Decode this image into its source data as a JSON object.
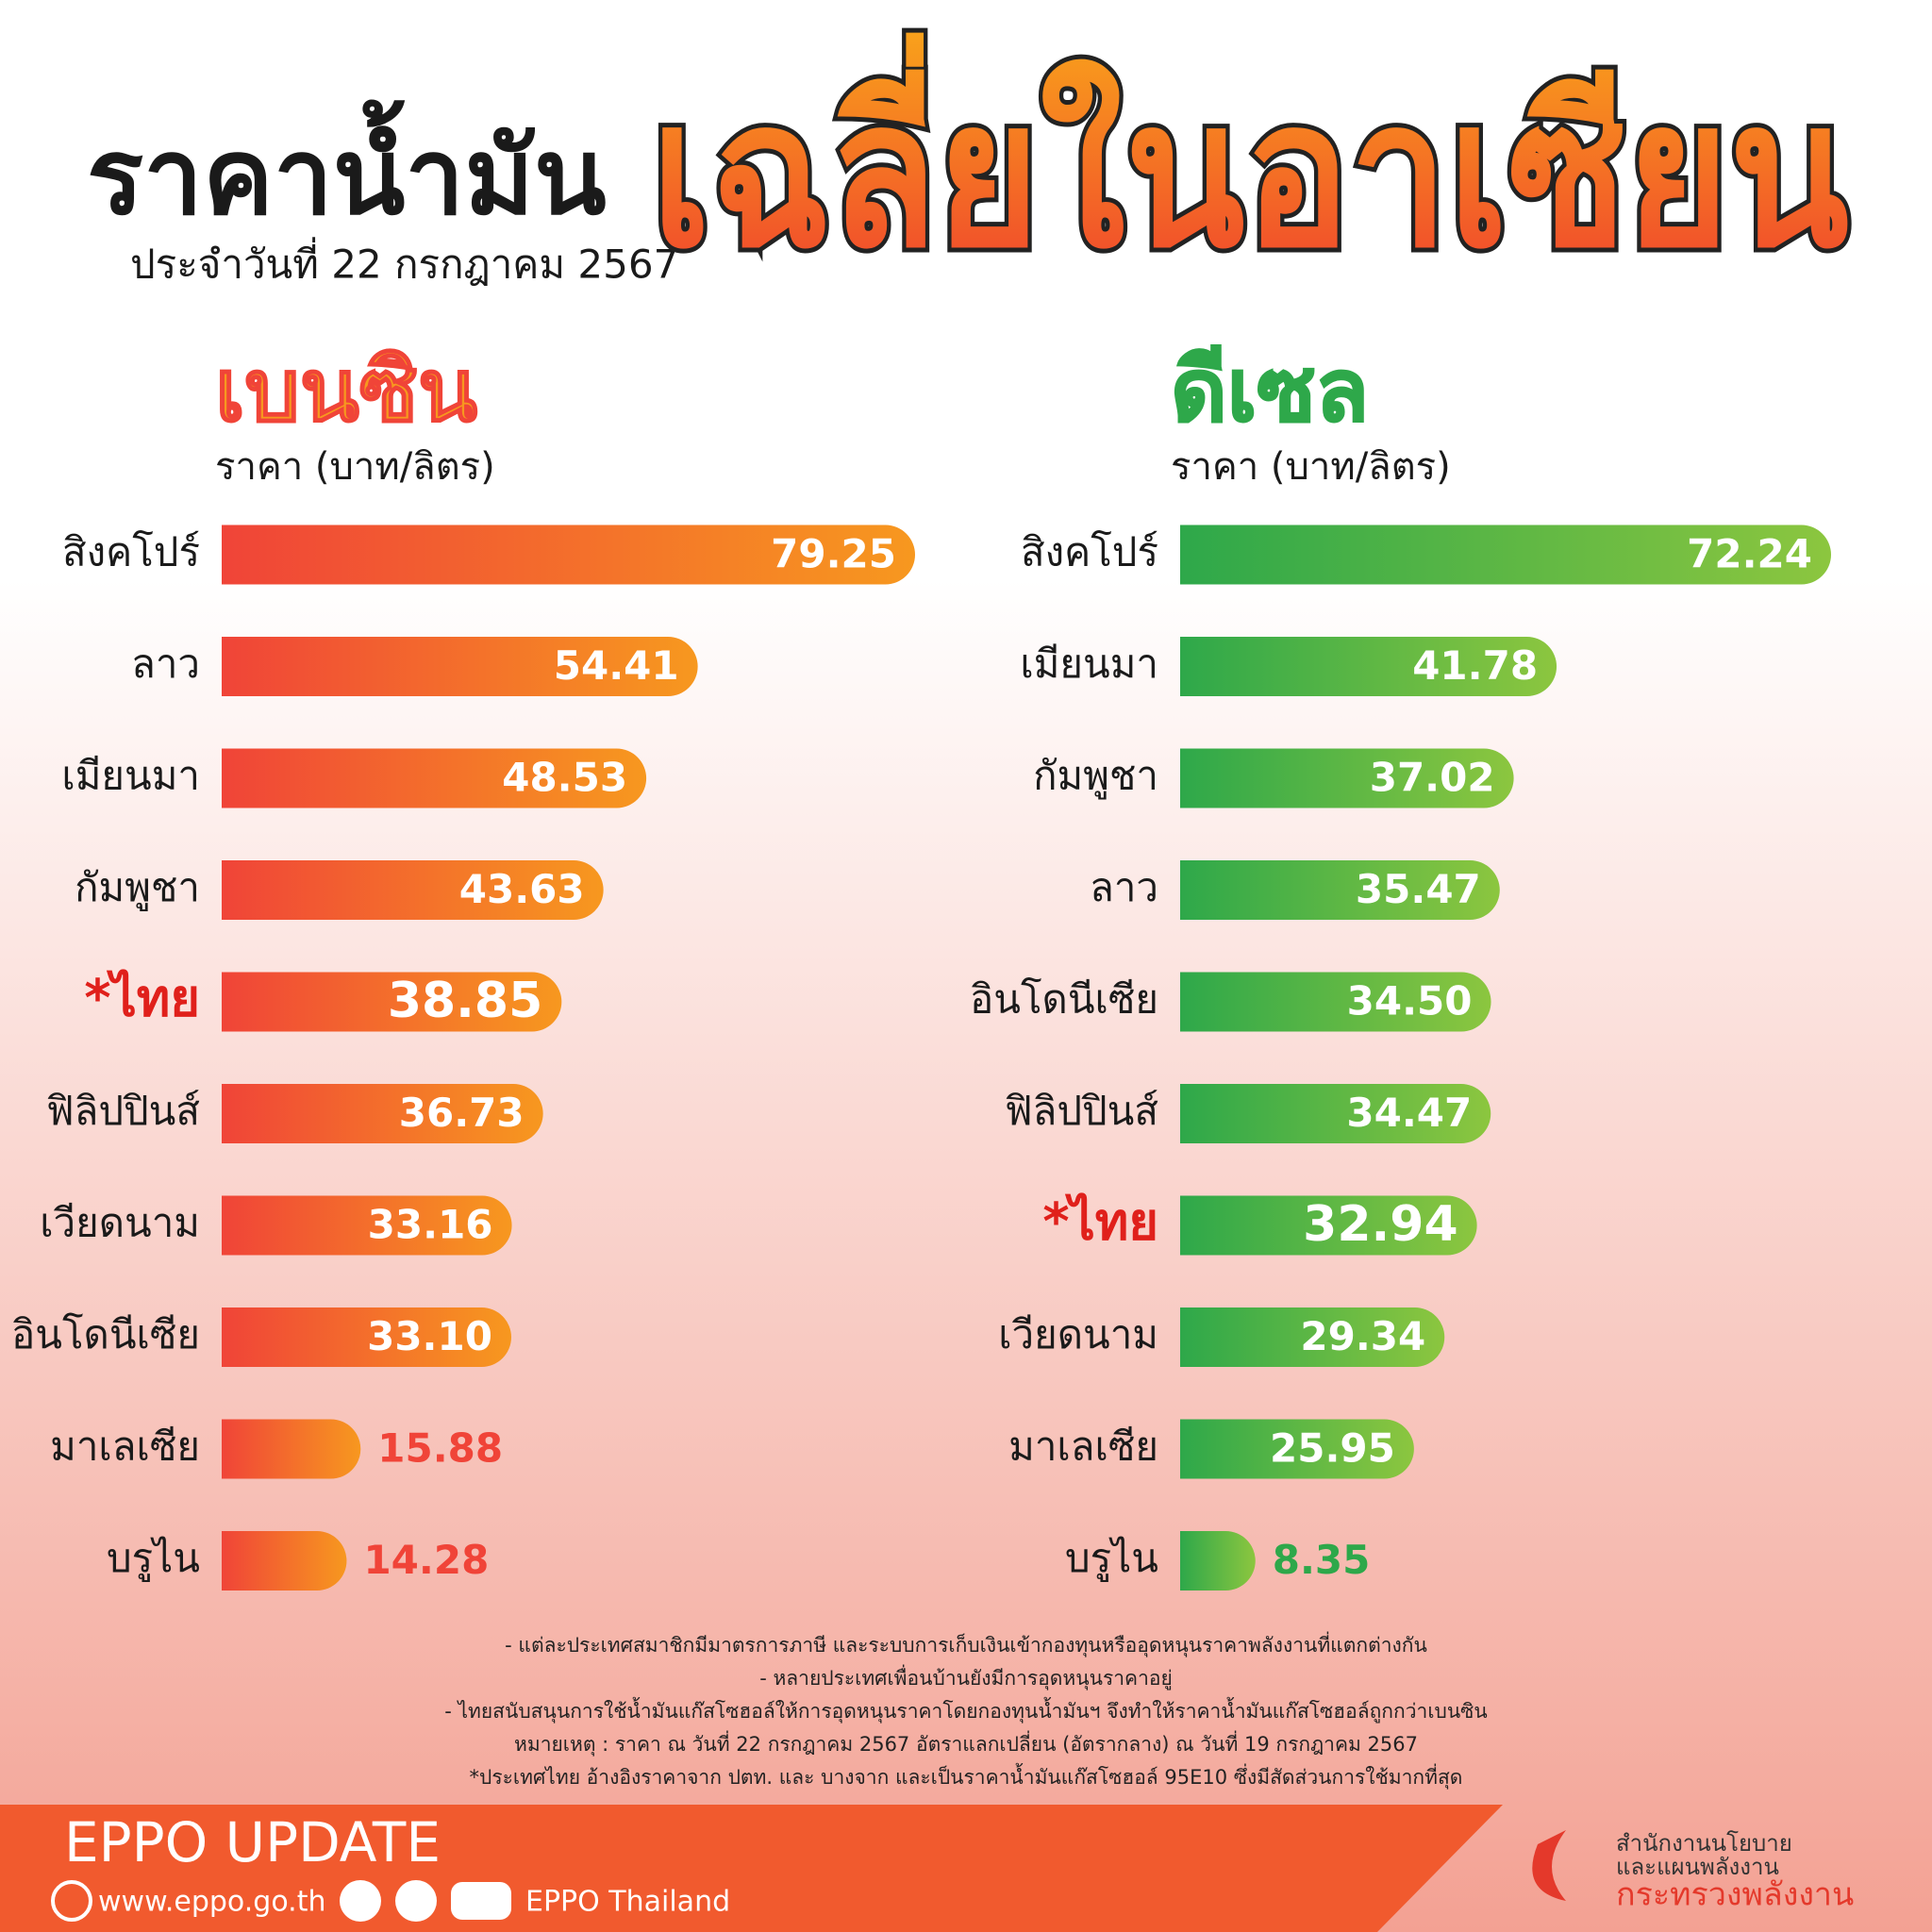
{
  "header": {
    "title": "ราคาน้ำมัน",
    "subtitle": "ประจำวันที่ 22 กรกฎาคม 2567",
    "title_highlight": "เฉลี่ยในอาเซียน"
  },
  "chart_data": [
    {
      "type": "bar",
      "orientation": "horizontal",
      "title": "เบนซิน",
      "axis_label": "ราคา (บาท/ลิตร)",
      "categories": [
        "สิงคโปร์",
        "ลาว",
        "เมียนมา",
        "กัมพูชา",
        "*ไทย",
        "ฟิลิปปินส์",
        "เวียดนาม",
        "อินโดนีเซีย",
        "มาเลเซีย",
        "บรูไน"
      ],
      "values": [
        79.25,
        54.41,
        48.53,
        43.63,
        38.85,
        36.73,
        33.16,
        33.1,
        15.88,
        14.28
      ],
      "value_labels": [
        "79.25",
        "54.41",
        "48.53",
        "43.63",
        "38.85",
        "36.73",
        "33.16",
        "33.10",
        "15.88",
        "14.28"
      ],
      "colors": [
        "#f04438",
        "#f7981f"
      ]
    },
    {
      "type": "bar",
      "orientation": "horizontal",
      "title": "ดีเซล",
      "axis_label": "ราคา (บาท/ลิตร)",
      "categories": [
        "สิงคโปร์",
        "เมียนมา",
        "กัมพูชา",
        "ลาว",
        "อินโดนีเซีย",
        "ฟิลิปปินส์",
        "*ไทย",
        "เวียดนาม",
        "มาเลเซีย",
        "บรูไน"
      ],
      "values": [
        72.24,
        41.78,
        37.02,
        35.47,
        34.5,
        34.47,
        32.94,
        29.34,
        25.95,
        8.35
      ],
      "value_labels": [
        "72.24",
        "41.78",
        "37.02",
        "35.47",
        "34.50",
        "34.47",
        "32.94",
        "29.34",
        "25.95",
        "8.35"
      ],
      "colors": [
        "#2ea84a",
        "#8cc63f"
      ]
    }
  ],
  "notes": [
    "- แต่ละประเทศสมาชิกมีมาตรการภาษี และระบบการเก็บเงินเข้ากองทุนหรืออุดหนุนราคาพลังงานที่แตกต่างกัน",
    "- หลายประเทศเพื่อนบ้านยังมีการอุดหนุนราคาอยู่",
    "- ไทยสนับสนุนการใช้น้ำมันแก๊สโซฮอล์ให้การอุดหนุนราคาโดยกองทุนน้ำมันฯ จึงทำให้ราคาน้ำมันแก๊สโซฮอล์ถูกกว่าเบนซิน",
    "หมายเหตุ :   ราคา ณ วันที่ 22 กรกฎาคม 2567 อัตราแลกเปลี่ยน (อัตรากลาง) ณ วันที่ 19 กรกฎาคม 2567",
    "*ประเทศไทย อ้างอิงราคาจาก ปตท. และ บางจาก และเป็นราคาน้ำมันแก๊สโซฮอล์ 95E10 ซึ่งมีสัดส่วนการใช้มากที่สุด"
  ],
  "footer": {
    "brand": "EPPO UPDATE",
    "website": "www.eppo.go.th",
    "social": "EPPO Thailand",
    "org_lines": [
      "สำนักงานนโยบาย",
      "และแผนพลังงาน",
      "กระทรวงพลังงาน"
    ]
  }
}
